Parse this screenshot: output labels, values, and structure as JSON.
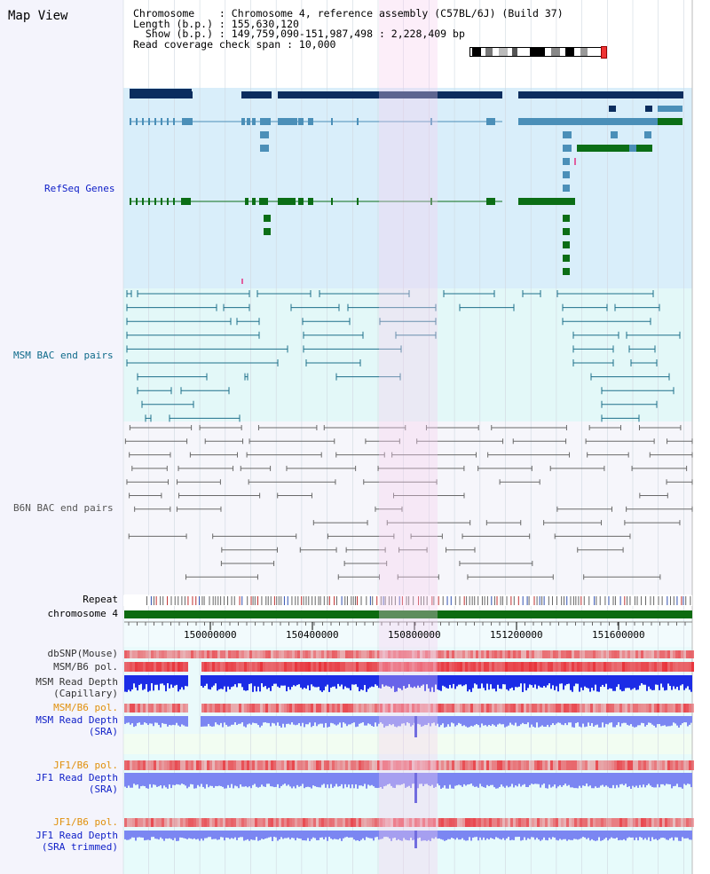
{
  "view": {
    "title": "Map View",
    "header": {
      "chromosome": "Chromosome    : Chromosome 4, reference assembly (C57BL/6J) (Build 37)",
      "length": "Length (b.p.) : 155,630,120",
      "show": "  Show (b.p.) : 149,759,090-151,987,498 : 2,228,409 bp",
      "coverage": "Read coverage check span : 10,000"
    }
  },
  "tracks": {
    "refseq": "RefSeq Genes",
    "msm_bac": "MSM BAC end pairs",
    "b6n_bac": "B6N BAC end pairs",
    "repeat": "Repeat",
    "chromosome": "chromosome 4",
    "dbsnp": "dbSNP(Mouse)",
    "msm_pol_1": "MSM/B6 pol.",
    "msm_depth_cap_1": "MSM Read Depth",
    "msm_depth_cap_2": "(Capillary)",
    "msm_pol_2": "MSM/B6 pol.",
    "msm_depth_sra_1": "MSM Read Depth",
    "msm_depth_sra_2": "(SRA)",
    "jf1_pol_1": "JF1/B6 pol.",
    "jf1_depth_1": "JF1 Read Depth",
    "jf1_depth_2": "(SRA)",
    "jf1_pol_2": "JF1/B6 pol.",
    "jf1_trim_1": "JF1 Read Depth",
    "jf1_trim_2": "(SRA trimmed)"
  },
  "axis": {
    "ticks": [
      "150000000",
      "150400000",
      "150800000",
      "151200000",
      "151600000"
    ]
  },
  "colors": {
    "gene_navy": "#0b2d5e",
    "gene_steel": "#4b8fb8",
    "gene_green": "#0b6e16",
    "msm_bac": "#1e6f8a",
    "b6n_bac": "#6a6a6a",
    "highlight": "#f6cdee",
    "refseq_bg": "#d9eefa",
    "msm_bg": "#e3f8f8",
    "b6n_bg": "#f6f6fb",
    "chrom_bar": "#0d6b10",
    "depth_dark": "#1c2ce6",
    "depth_light": "#7b86f2",
    "pol_red": "#e8333a",
    "label_blue": "#1020c8",
    "label_teal": "#0e6a8a",
    "label_orange": "#e0900c"
  }
}
